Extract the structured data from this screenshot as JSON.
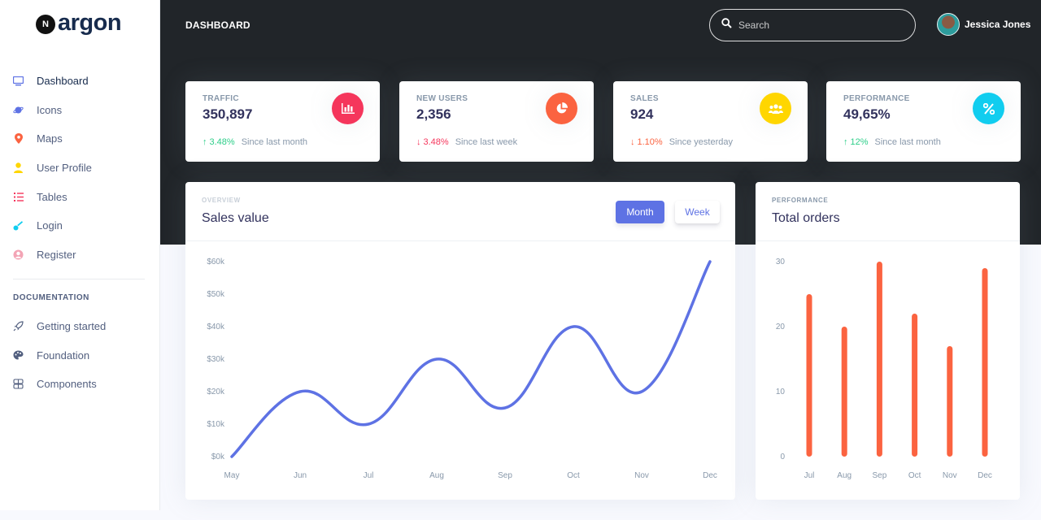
{
  "brand": {
    "mark": "N",
    "name": "argon"
  },
  "sidebar": {
    "items": [
      {
        "label": "Dashboard",
        "icon": "tv-icon",
        "color": "#5e72e4"
      },
      {
        "label": "Icons",
        "icon": "planet-icon",
        "color": "#5e72e4"
      },
      {
        "label": "Maps",
        "icon": "pin-icon",
        "color": "#fb6340"
      },
      {
        "label": "User Profile",
        "icon": "user-icon",
        "color": "#ffd600"
      },
      {
        "label": "Tables",
        "icon": "list-icon",
        "color": "#f5365c"
      },
      {
        "label": "Login",
        "icon": "key-icon",
        "color": "#11cdef"
      },
      {
        "label": "Register",
        "icon": "circle-user-icon",
        "color": "#f3a4b5"
      }
    ],
    "doc_heading": "DOCUMENTATION",
    "doc_items": [
      {
        "label": "Getting started",
        "icon": "rocket-icon"
      },
      {
        "label": "Foundation",
        "icon": "palette-icon"
      },
      {
        "label": "Components",
        "icon": "components-icon"
      }
    ]
  },
  "header": {
    "title": "DASHBOARD",
    "search_placeholder": "Search",
    "user_name": "Jessica Jones"
  },
  "stats": [
    {
      "label": "TRAFFIC",
      "value": "350,897",
      "change": "3.48%",
      "direction": "up",
      "change_color": "#2dce89",
      "since": "Since last month",
      "icon": "chart-bar-icon",
      "icon_bg": "#f5365c"
    },
    {
      "label": "NEW USERS",
      "value": "2,356",
      "change": "3.48%",
      "direction": "down",
      "change_color": "#f5365c",
      "since": "Since last week",
      "icon": "chart-pie-icon",
      "icon_bg": "#fb6340"
    },
    {
      "label": "SALES",
      "value": "924",
      "change": "1.10%",
      "direction": "down",
      "change_color": "#fb6340",
      "since": "Since yesterday",
      "icon": "users-icon",
      "icon_bg": "#ffd600"
    },
    {
      "label": "PERFORMANCE",
      "value": "49,65%",
      "change": "12%",
      "direction": "up",
      "change_color": "#2dce89",
      "since": "Since last month",
      "icon": "percent-icon",
      "icon_bg": "#11cdef"
    }
  ],
  "arrows": {
    "up": "↑",
    "down": "↓"
  },
  "sales_card": {
    "overline": "OVERVIEW",
    "title": "Sales value",
    "month_label": "Month",
    "week_label": "Week"
  },
  "orders_card": {
    "overline": "PERFORMANCE",
    "title": "Total orders"
  },
  "chart_data": [
    {
      "type": "line",
      "title": "Sales value",
      "categories": [
        "May",
        "Jun",
        "Jul",
        "Aug",
        "Sep",
        "Oct",
        "Nov",
        "Dec"
      ],
      "values": [
        0,
        20,
        10,
        30,
        15,
        40,
        20,
        60
      ],
      "y_ticks": [
        "$0k",
        "$10k",
        "$20k",
        "$30k",
        "$40k",
        "$50k",
        "$60k"
      ],
      "ylim": [
        0,
        60
      ],
      "color": "#5e72e4",
      "grid": false
    },
    {
      "type": "bar",
      "title": "Total orders",
      "categories": [
        "Jul",
        "Aug",
        "Sep",
        "Oct",
        "Nov",
        "Dec"
      ],
      "values": [
        25,
        20,
        30,
        22,
        17,
        29
      ],
      "y_ticks": [
        "0",
        "10",
        "20",
        "30"
      ],
      "ylim": [
        0,
        30
      ],
      "color": "#fb6340",
      "grid": false
    }
  ]
}
